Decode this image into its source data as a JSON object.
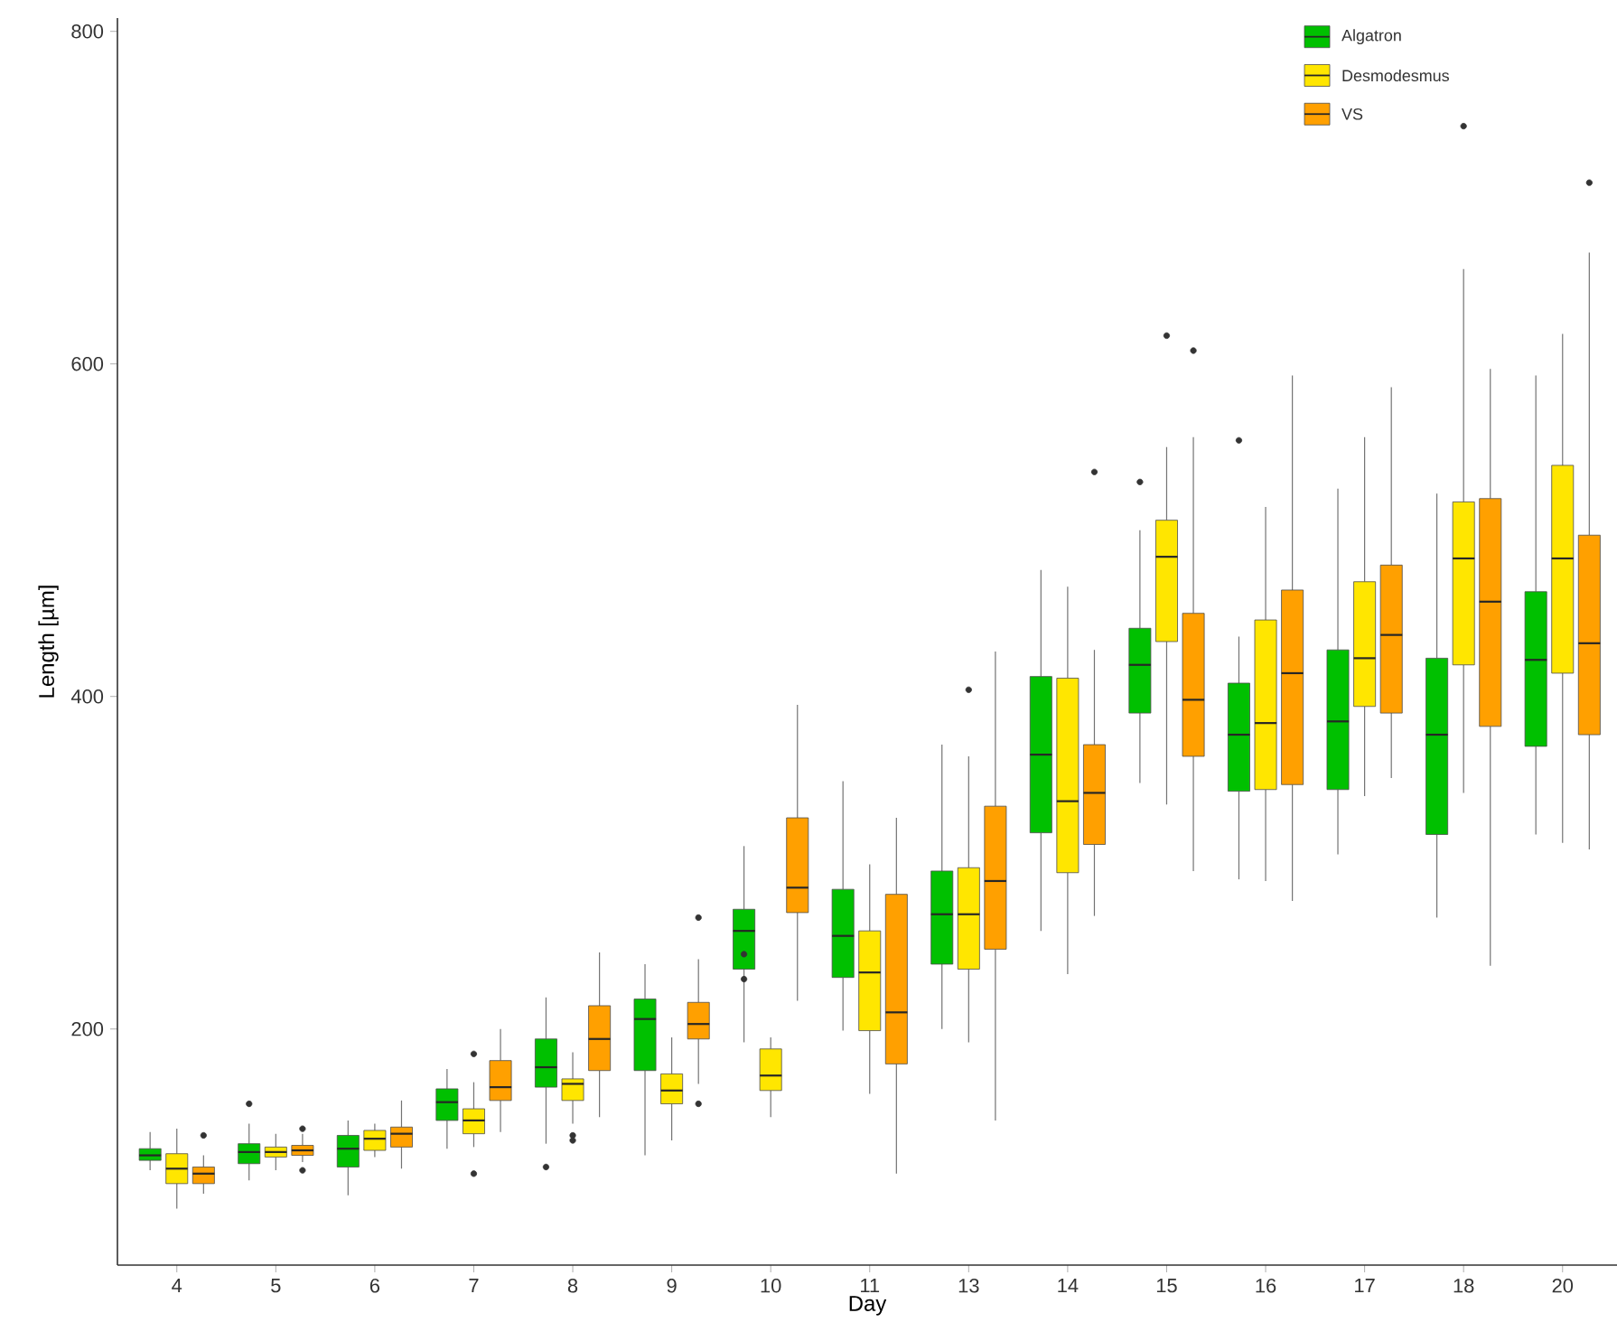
{
  "chart_data": {
    "type": "box",
    "xlabel": "Day",
    "ylabel": "Length [µm]",
    "categories": [
      "4",
      "5",
      "6",
      "7",
      "8",
      "9",
      "10",
      "11",
      "13",
      "14",
      "15",
      "16",
      "17",
      "18",
      "20"
    ],
    "ylim": [
      58,
      808
    ],
    "yticks": [
      200,
      400,
      600,
      800
    ],
    "legend": "top right",
    "grid": false,
    "series": [
      {
        "name": "Algatron",
        "color": "#00c000",
        "boxes": [
          {
            "low": 115,
            "q1": 121,
            "median": 124,
            "q3": 128,
            "high": 138
          },
          {
            "low": 109,
            "q1": 119,
            "median": 126,
            "q3": 131,
            "high": 143,
            "outliers": [
              155
            ]
          },
          {
            "low": 100,
            "q1": 117,
            "median": 128,
            "q3": 136,
            "high": 145
          },
          {
            "low": 128,
            "q1": 145,
            "median": 156,
            "q3": 164,
            "high": 176
          },
          {
            "low": 131,
            "q1": 165,
            "median": 177,
            "q3": 194,
            "high": 219,
            "outliers": [
              117
            ]
          },
          {
            "low": 124,
            "q1": 175,
            "median": 206,
            "q3": 218,
            "high": 239
          },
          {
            "low": 192,
            "q1": 236,
            "median": 259,
            "q3": 272,
            "high": 310,
            "outliers": [
              245,
              230
            ]
          },
          {
            "low": 199,
            "q1": 231,
            "median": 256,
            "q3": 284,
            "high": 349
          },
          {
            "low": 200,
            "q1": 239,
            "median": 269,
            "q3": 295,
            "high": 371
          },
          {
            "low": 259,
            "q1": 318,
            "median": 365,
            "q3": 412,
            "high": 476
          },
          {
            "low": 348,
            "q1": 390,
            "median": 419,
            "q3": 441,
            "high": 500,
            "outliers": [
              529
            ]
          },
          {
            "low": 290,
            "q1": 343,
            "median": 377,
            "q3": 408,
            "high": 436,
            "outliers": [
              554
            ]
          },
          {
            "low": 305,
            "q1": 344,
            "median": 385,
            "q3": 428,
            "high": 525
          },
          {
            "low": 267,
            "q1": 317,
            "median": 377,
            "q3": 423,
            "high": 522
          },
          {
            "low": 317,
            "q1": 370,
            "median": 422,
            "q3": 463,
            "high": 593
          }
        ]
      },
      {
        "name": "Desmodesmus",
        "color": "#ffe600",
        "boxes": [
          {
            "low": 92,
            "q1": 107,
            "median": 116,
            "q3": 125,
            "high": 140
          },
          {
            "low": 115,
            "q1": 123,
            "median": 126,
            "q3": 129,
            "high": 137
          },
          {
            "low": 123,
            "q1": 127,
            "median": 134,
            "q3": 139,
            "high": 143
          },
          {
            "low": 129,
            "q1": 137,
            "median": 145,
            "q3": 152,
            "high": 168,
            "outliers": [
              185,
              113
            ]
          },
          {
            "low": 143,
            "q1": 157,
            "median": 167,
            "q3": 170,
            "high": 186,
            "outliers": [
              136,
              133
            ]
          },
          {
            "low": 133,
            "q1": 155,
            "median": 163,
            "q3": 173,
            "high": 195
          },
          {
            "low": 147,
            "q1": 163,
            "median": 172,
            "q3": 188,
            "high": 195
          },
          {
            "low": 161,
            "q1": 199,
            "median": 234,
            "q3": 259,
            "high": 299
          },
          {
            "low": 192,
            "q1": 236,
            "median": 269,
            "q3": 297,
            "high": 364,
            "outliers": [
              404
            ]
          },
          {
            "low": 233,
            "q1": 294,
            "median": 337,
            "q3": 411,
            "high": 466
          },
          {
            "low": 335,
            "q1": 433,
            "median": 484,
            "q3": 506,
            "high": 550,
            "outliers": [
              617
            ]
          },
          {
            "low": 289,
            "q1": 344,
            "median": 384,
            "q3": 446,
            "high": 514
          },
          {
            "low": 340,
            "q1": 394,
            "median": 423,
            "q3": 469,
            "high": 556
          },
          {
            "low": 342,
            "q1": 419,
            "median": 483,
            "q3": 517,
            "high": 657,
            "outliers": [
              743
            ]
          },
          {
            "low": 312,
            "q1": 414,
            "median": 483,
            "q3": 539,
            "high": 618
          }
        ]
      },
      {
        "name": "VS",
        "color": "#ffa000",
        "boxes": [
          {
            "low": 101,
            "q1": 107,
            "median": 113,
            "q3": 117,
            "high": 124,
            "outliers": [
              136
            ]
          },
          {
            "low": 120,
            "q1": 124,
            "median": 127,
            "q3": 130,
            "high": 137,
            "outliers": [
              140,
              115
            ]
          },
          {
            "low": 116,
            "q1": 129,
            "median": 137,
            "q3": 141,
            "high": 157
          },
          {
            "low": 138,
            "q1": 157,
            "median": 165,
            "q3": 181,
            "high": 200
          },
          {
            "low": 147,
            "q1": 175,
            "median": 194,
            "q3": 214,
            "high": 246
          },
          {
            "low": 167,
            "q1": 194,
            "median": 203,
            "q3": 216,
            "high": 242,
            "outliers": [
              267,
              155
            ]
          },
          {
            "low": 217,
            "q1": 270,
            "median": 285,
            "q3": 327,
            "high": 395
          },
          {
            "low": 113,
            "q1": 179,
            "median": 210,
            "q3": 281,
            "high": 327
          },
          {
            "low": 145,
            "q1": 248,
            "median": 289,
            "q3": 334,
            "high": 427
          },
          {
            "low": 268,
            "q1": 311,
            "median": 342,
            "q3": 371,
            "high": 428,
            "outliers": [
              535
            ]
          },
          {
            "low": 295,
            "q1": 364,
            "median": 398,
            "q3": 450,
            "high": 556,
            "outliers": [
              608
            ]
          },
          {
            "low": 277,
            "q1": 347,
            "median": 414,
            "q3": 464,
            "high": 593
          },
          {
            "low": 351,
            "q1": 390,
            "median": 437,
            "q3": 479,
            "high": 586
          },
          {
            "low": 238,
            "q1": 382,
            "median": 457,
            "q3": 519,
            "high": 597
          },
          {
            "low": 308,
            "q1": 377,
            "median": 432,
            "q3": 497,
            "high": 667,
            "outliers": [
              709
            ]
          }
        ]
      }
    ]
  }
}
